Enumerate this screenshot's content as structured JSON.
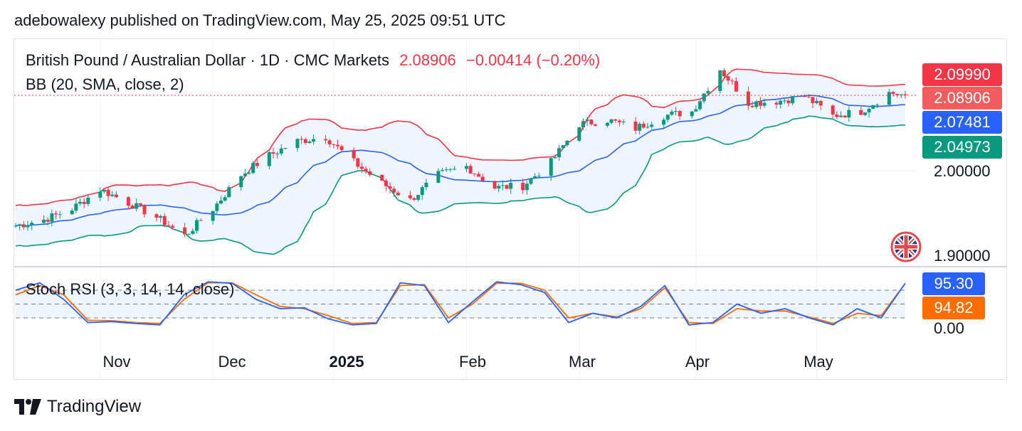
{
  "publisher_line": "adebowalexy published on TradingView.com, May 25, 2025 09:51 UTC",
  "header": {
    "symbol": "British Pound / Australian Dollar · 1D · CMC Markets",
    "last": "2.08906",
    "change": "−0.00414 (−0.20%)",
    "indicator": "BB (20, SMA, close, 2)",
    "oscillator": "Stoch RSI (3, 3, 14, 14, close)"
  },
  "price_tags": [
    {
      "label": "2.09990",
      "color": "#f23645",
      "role": "bb-upper"
    },
    {
      "label": "2.08906",
      "color": "#f25c5c",
      "role": "last-price"
    },
    {
      "label": "2.07481",
      "color": "#2962ff",
      "role": "bb-basis"
    },
    {
      "label": "2.04973",
      "color": "#089981",
      "role": "bb-lower"
    },
    {
      "label": "95.30",
      "color": "#2962ff",
      "role": "stoch-k"
    },
    {
      "label": "94.82",
      "color": "#ff6d00",
      "role": "stoch-d"
    }
  ],
  "y_axis_labels": [
    "2.00000",
    "1.90000",
    "0.00"
  ],
  "x_axis_labels": [
    {
      "label": "Nov",
      "bold": false
    },
    {
      "label": "Dec",
      "bold": false
    },
    {
      "label": "2025",
      "bold": true
    },
    {
      "label": "Feb",
      "bold": false
    },
    {
      "label": "Mar",
      "bold": false
    },
    {
      "label": "Apr",
      "bold": false
    },
    {
      "label": "May",
      "bold": false
    }
  ],
  "brand": "TradingView",
  "colors": {
    "up": "#089981",
    "down": "#f23645",
    "bb_upper": "#f23645",
    "bb_basis": "#2962ff",
    "bb_lower": "#089981",
    "band_fill": "#eef5fd",
    "stoch_k": "#2962ff",
    "stoch_d": "#ff6d00"
  },
  "chart_data": [
    {
      "type": "candlestick",
      "title": "British Pound / Australian Dollar · 1D · CMC Markets",
      "x_range": [
        "2024-10-14",
        "2025-05-23"
      ],
      "ylim": [
        1.9,
        2.1
      ],
      "close_path": [
        [
          "2024-10-14",
          1.935
        ],
        [
          "2024-10-21",
          1.942
        ],
        [
          "2024-10-28",
          1.955
        ],
        [
          "2024-11-04",
          1.978
        ],
        [
          "2024-11-11",
          1.962
        ],
        [
          "2024-11-18",
          1.945
        ],
        [
          "2024-11-25",
          1.923
        ],
        [
          "2024-12-02",
          1.955
        ],
        [
          "2024-12-09",
          1.995
        ],
        [
          "2024-12-16",
          2.018
        ],
        [
          "2024-12-23",
          2.035
        ],
        [
          "2024-12-30",
          2.04
        ],
        [
          "2025-01-06",
          2.01
        ],
        [
          "2025-01-13",
          1.985
        ],
        [
          "2025-01-20",
          1.965
        ],
        [
          "2025-01-27",
          1.995
        ],
        [
          "2025-02-03",
          2.005
        ],
        [
          "2025-02-10",
          1.98
        ],
        [
          "2025-02-17",
          1.982
        ],
        [
          "2025-02-24",
          2.01
        ],
        [
          "2025-03-03",
          2.055
        ],
        [
          "2025-03-10",
          2.06
        ],
        [
          "2025-03-17",
          2.05
        ],
        [
          "2025-03-24",
          2.065
        ],
        [
          "2025-03-31",
          2.07
        ],
        [
          "2025-04-07",
          2.12
        ],
        [
          "2025-04-14",
          2.08
        ],
        [
          "2025-04-21",
          2.082
        ],
        [
          "2025-04-28",
          2.088
        ],
        [
          "2025-05-05",
          2.065
        ],
        [
          "2025-05-12",
          2.07
        ],
        [
          "2025-05-19",
          2.092
        ],
        [
          "2025-05-23",
          2.08906
        ]
      ],
      "bb_upper_last": 2.0999,
      "bb_basis_last": 2.07481,
      "bb_lower_last": 2.04973,
      "last": 2.08906
    },
    {
      "type": "line",
      "title": "Stoch RSI (3, 3, 14, 14, close)",
      "ylim": [
        0,
        100
      ],
      "series": [
        {
          "name": "K",
          "values": [
            80,
            96,
            60,
            10,
            12,
            8,
            5,
            70,
            98,
            95,
            60,
            40,
            42,
            18,
            5,
            8,
            96,
            90,
            10,
            55,
            98,
            92,
            75,
            10,
            30,
            20,
            45,
            90,
            5,
            10,
            50,
            30,
            40,
            20,
            5,
            40,
            20,
            95.3
          ]
        },
        {
          "name": "D",
          "values": [
            70,
            90,
            70,
            15,
            14,
            10,
            8,
            60,
            96,
            96,
            70,
            45,
            40,
            25,
            8,
            10,
            90,
            92,
            20,
            50,
            95,
            95,
            80,
            20,
            30,
            22,
            40,
            85,
            10,
            8,
            40,
            35,
            35,
            22,
            8,
            30,
            25,
            94.82
          ]
        }
      ],
      "reference_lines": [
        80,
        50,
        20
      ]
    }
  ]
}
